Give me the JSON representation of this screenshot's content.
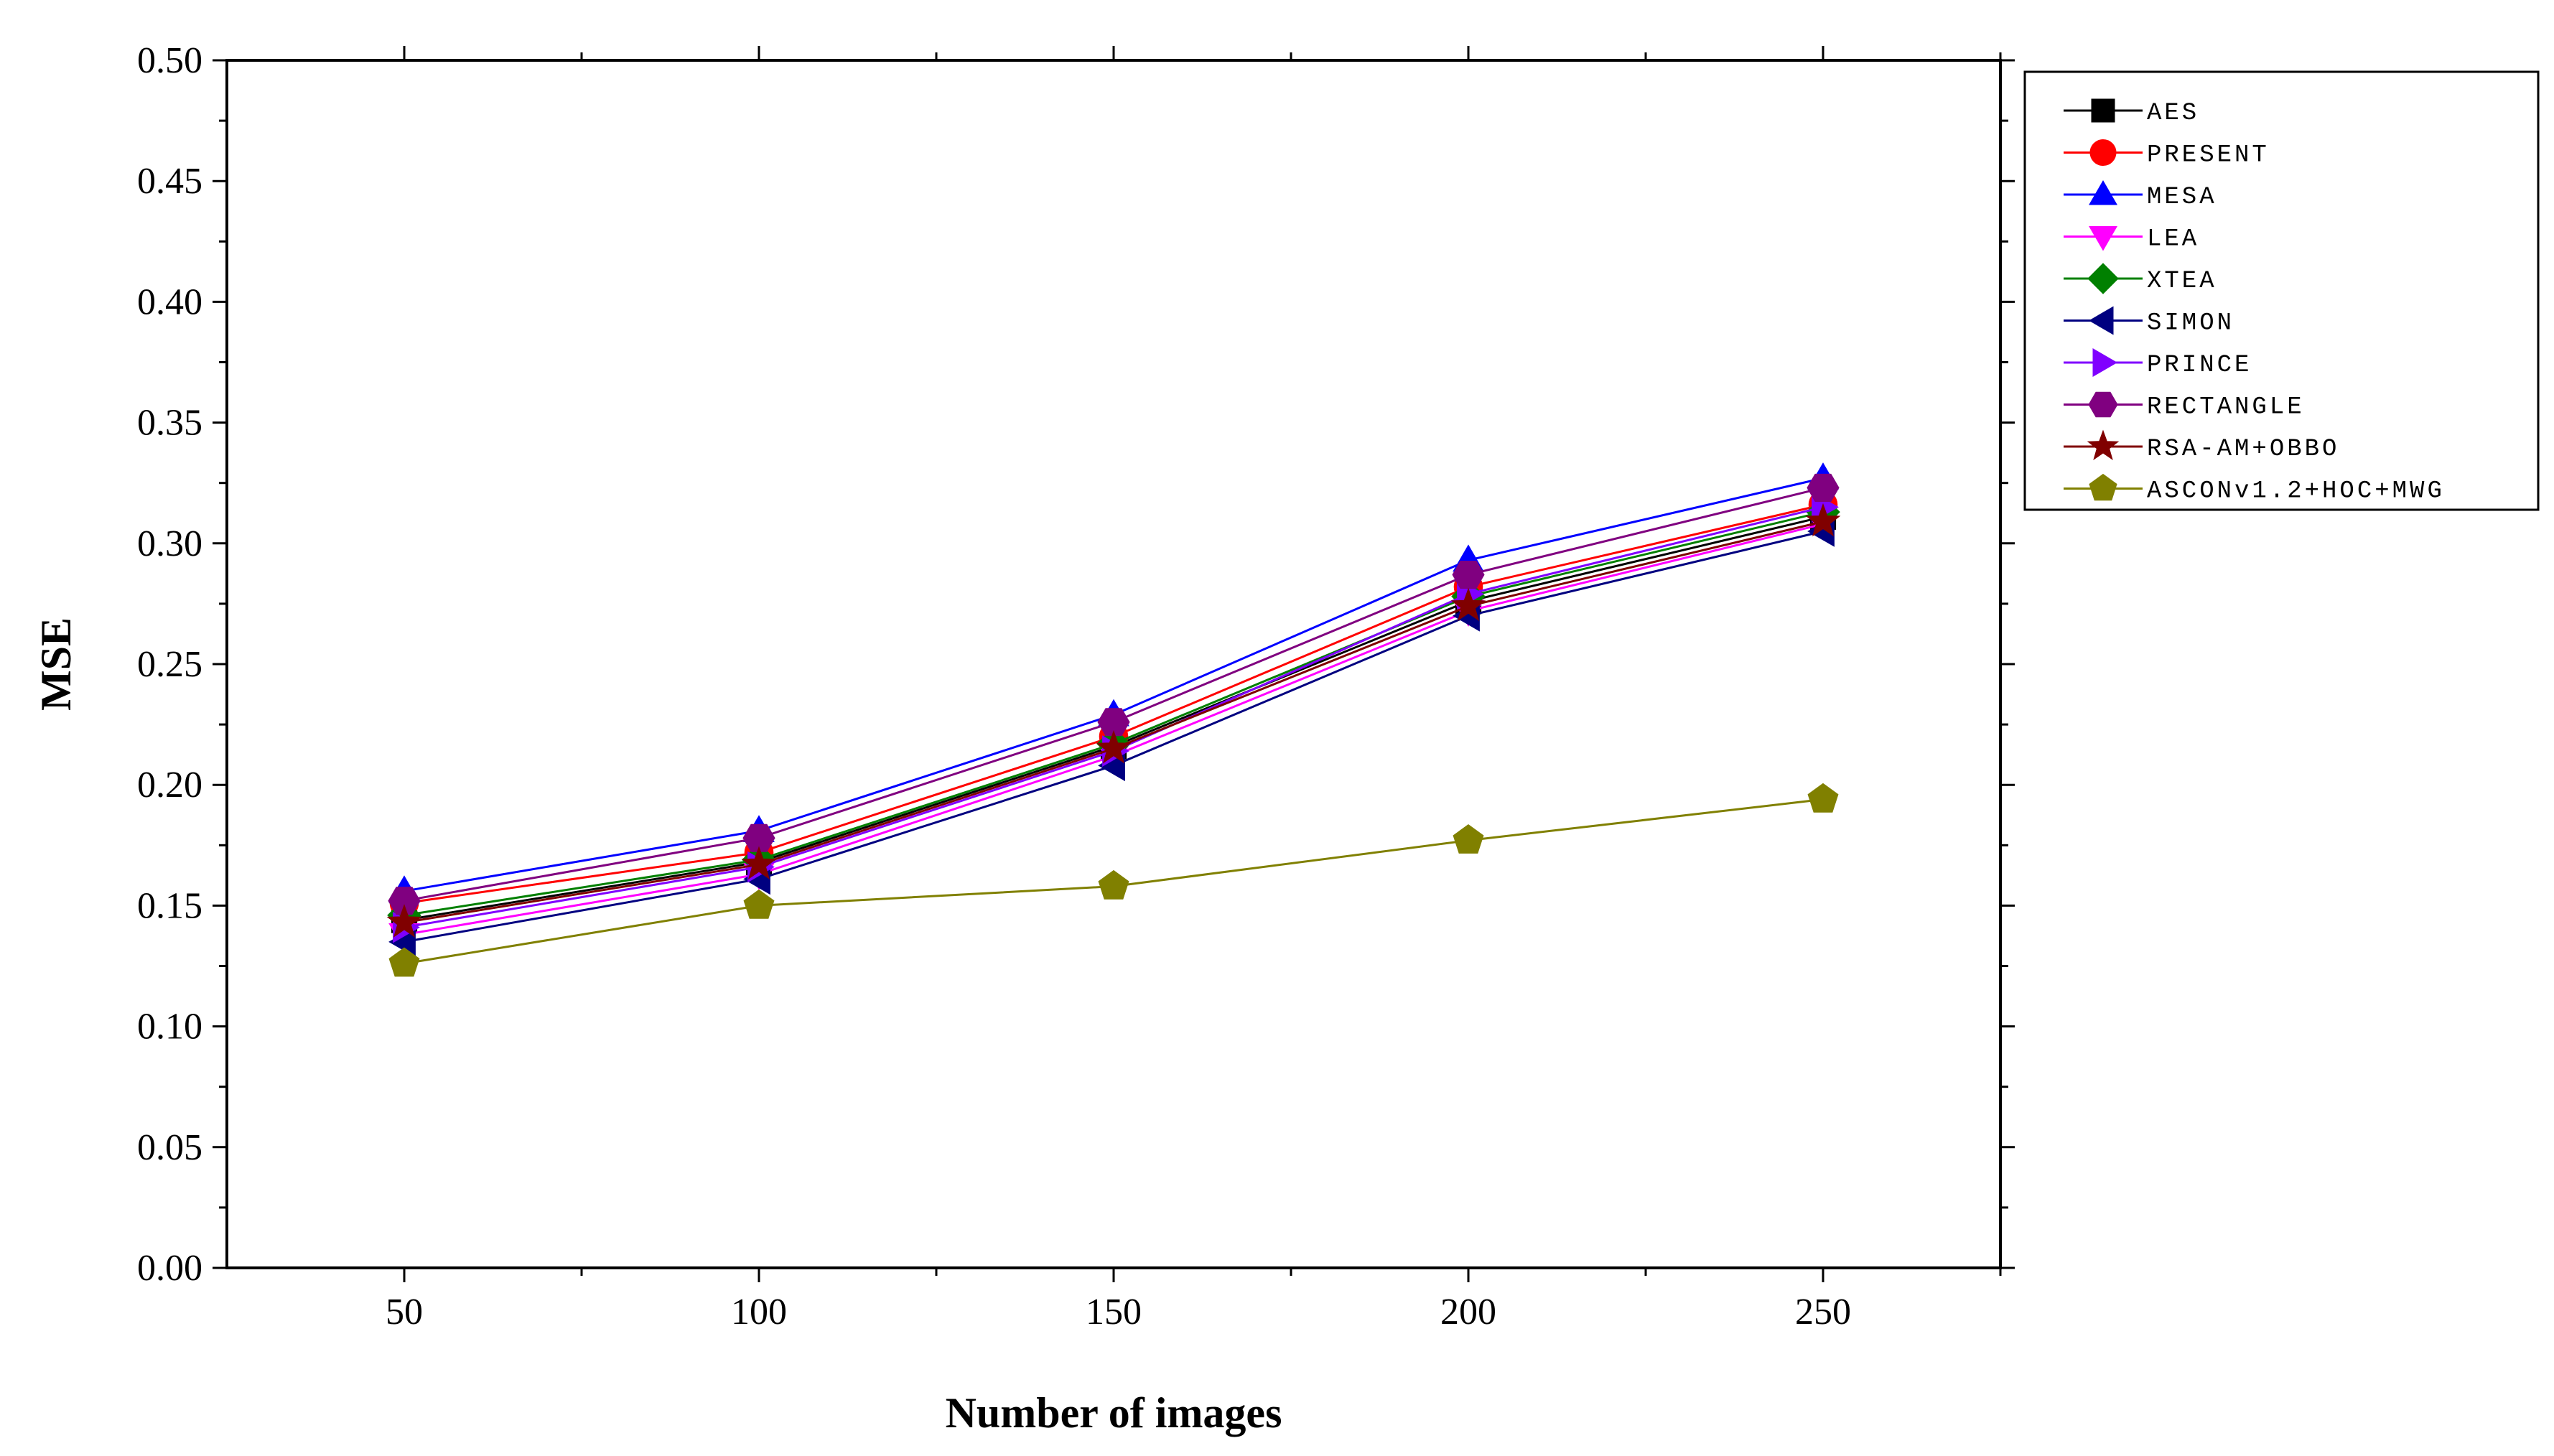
{
  "chart_data": {
    "type": "line",
    "xlabel": "Number of images",
    "ylabel": "MSE",
    "x": [
      50,
      100,
      150,
      200,
      250
    ],
    "xlim": [
      25,
      275
    ],
    "ylim": [
      0,
      0.5
    ],
    "x_tick_labels": [
      "50",
      "100",
      "150",
      "200",
      "250"
    ],
    "y_tick_labels": [
      "0.00",
      "0.05",
      "0.10",
      "0.15",
      "0.20",
      "0.25",
      "0.30",
      "0.35",
      "0.40",
      "0.45",
      "0.50"
    ],
    "grid": false,
    "legend_position": "outside-right",
    "series": [
      {
        "name": "AES",
        "color": "#000000",
        "marker": "square",
        "values": [
          0.144,
          0.168,
          0.216,
          0.276,
          0.311
        ]
      },
      {
        "name": "PRESENT",
        "color": "#ff0000",
        "marker": "circle",
        "values": [
          0.151,
          0.172,
          0.22,
          0.282,
          0.316
        ]
      },
      {
        "name": "MESA",
        "color": "#0000ff",
        "marker": "triangle-up",
        "values": [
          0.156,
          0.181,
          0.229,
          0.293,
          0.327
        ]
      },
      {
        "name": "LEA",
        "color": "#ff00ff",
        "marker": "triangle-down",
        "values": [
          0.138,
          0.163,
          0.212,
          0.272,
          0.308
        ]
      },
      {
        "name": "XTEA",
        "color": "#008000",
        "marker": "diamond",
        "values": [
          0.146,
          0.169,
          0.217,
          0.278,
          0.313
        ]
      },
      {
        "name": "SIMON",
        "color": "#000080",
        "marker": "triangle-left",
        "values": [
          0.135,
          0.161,
          0.208,
          0.27,
          0.305
        ]
      },
      {
        "name": "PRINCE",
        "color": "#8000ff",
        "marker": "triangle-right",
        "values": [
          0.141,
          0.166,
          0.214,
          0.279,
          0.315
        ]
      },
      {
        "name": "RECTANGLE",
        "color": "#800080",
        "marker": "hexagon",
        "values": [
          0.152,
          0.178,
          0.226,
          0.287,
          0.323
        ]
      },
      {
        "name": "RSA-AM+OBBO",
        "color": "#800000",
        "marker": "star",
        "values": [
          0.143,
          0.167,
          0.215,
          0.274,
          0.309
        ]
      },
      {
        "name": "ASCONv1.2+HOC+MWG",
        "color": "#808000",
        "marker": "pentagon",
        "values": [
          0.126,
          0.15,
          0.158,
          0.177,
          0.194
        ]
      }
    ]
  }
}
